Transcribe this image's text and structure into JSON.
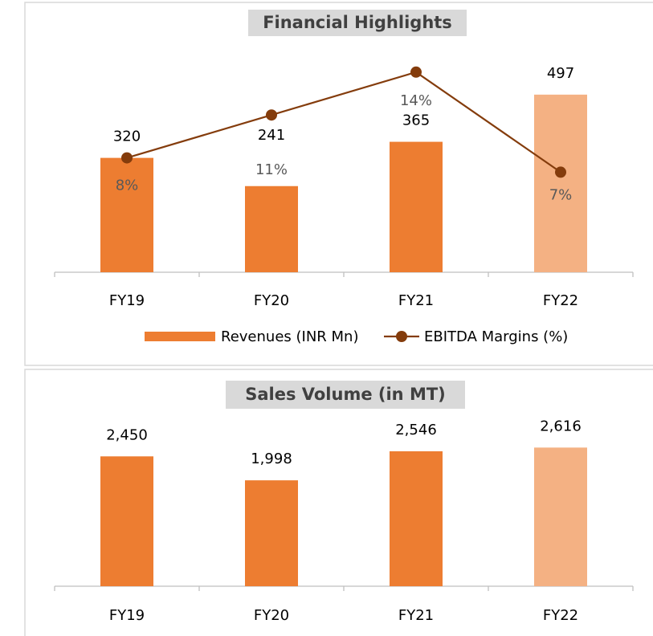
{
  "chart_data": [
    {
      "type": "bar-line",
      "title": "Financial Highlights",
      "categories": [
        "FY19",
        "FY20",
        "FY21",
        "FY22"
      ],
      "series": [
        {
          "name": "Revenues (INR Mn)",
          "type": "bar",
          "color": "#ed7d31",
          "colors": [
            "#ed7d31",
            "#ed7d31",
            "#ed7d31",
            "#f4b183"
          ],
          "values": [
            320,
            241,
            365,
            497
          ]
        },
        {
          "name": "EBITDA Margins (%)",
          "type": "line",
          "axis": "y2",
          "color": "#843c0c",
          "values": [
            8,
            11,
            14,
            7
          ],
          "value_labels": [
            "8%",
            "11%",
            "14%",
            "7%"
          ]
        }
      ],
      "ylim": [
        0,
        600
      ],
      "y2lim": [
        0,
        15
      ],
      "legend": "bottom"
    },
    {
      "type": "bar",
      "title": "Sales Volume (in MT)",
      "categories": [
        "FY19",
        "FY20",
        "FY21",
        "FY22"
      ],
      "series": [
        {
          "name": "Sales Volume",
          "color": "#ed7d31",
          "colors": [
            "#ed7d31",
            "#ed7d31",
            "#ed7d31",
            "#f4b183"
          ],
          "values": [
            2450,
            1998,
            2546,
            2616
          ],
          "value_labels": [
            "2,450",
            "1,998",
            "2,546",
            "2,616"
          ]
        }
      ],
      "ylim": [
        0,
        3000
      ]
    }
  ]
}
